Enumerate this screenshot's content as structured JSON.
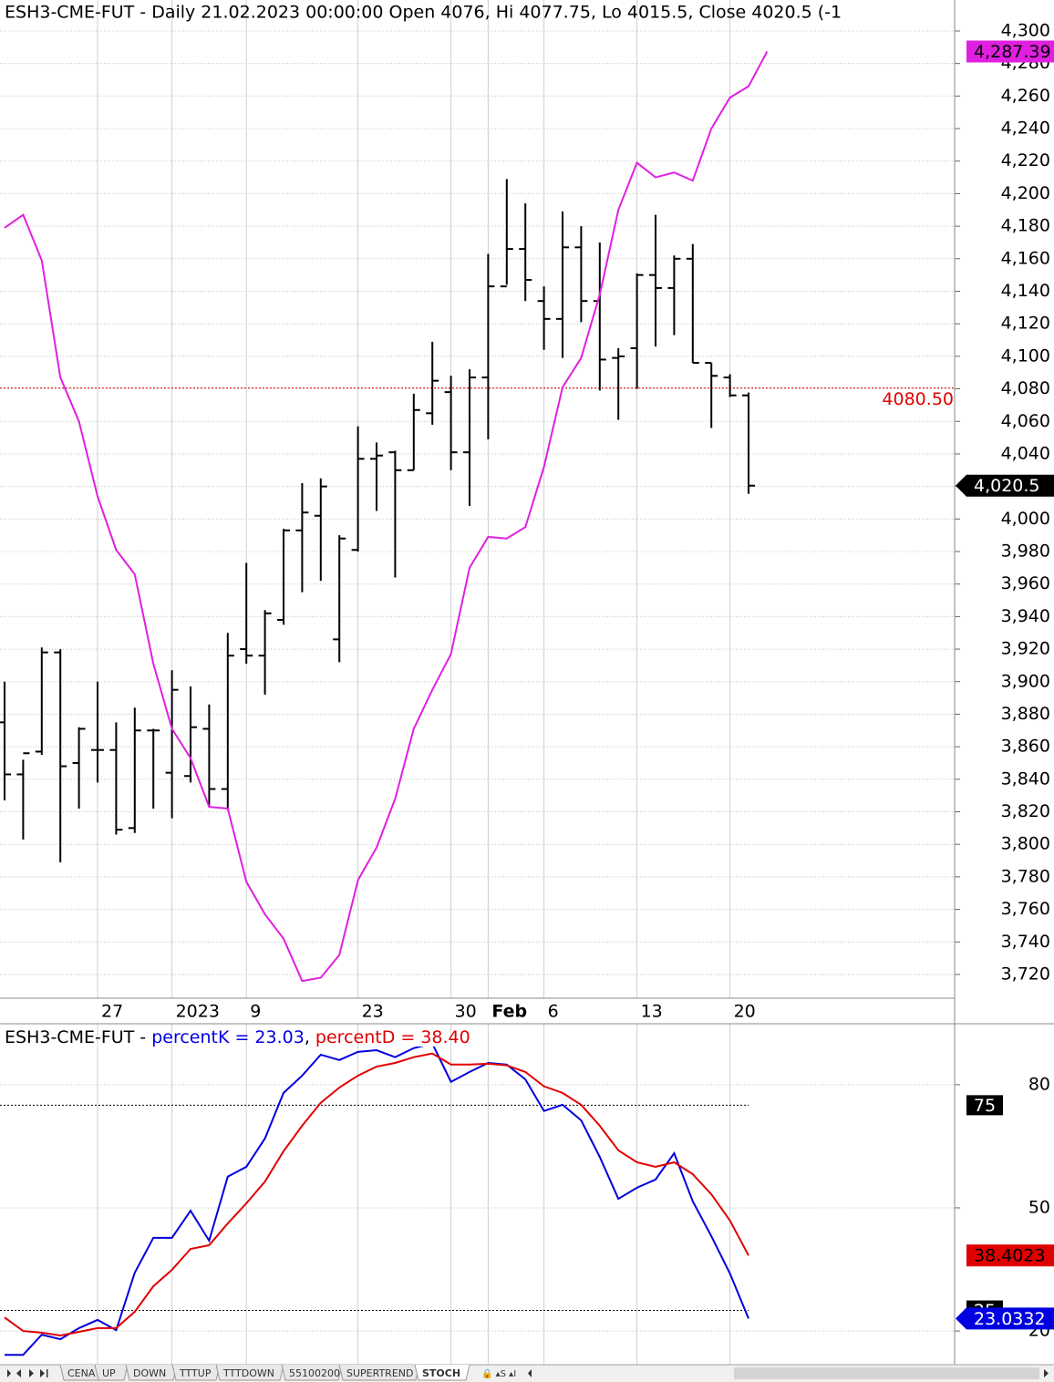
{
  "chart_data": [
    {
      "type": "ohlc",
      "title": "ESH3-CME-FUT - Daily 21.02.2023 00:00:00 Open 4076, Hi 4077.75, Lo 4015.5, Close 4020.5 (-1",
      "categories": [
        null,
        null,
        null,
        null,
        null,
        "27",
        null,
        null,
        null,
        "2023",
        null,
        null,
        null,
        "9",
        null,
        null,
        null,
        null,
        null,
        "23",
        null,
        null,
        null,
        null,
        "30",
        null,
        "Feb",
        null,
        null,
        "6",
        null,
        null,
        null,
        null,
        "13",
        null,
        null,
        null,
        null,
        "20",
        null,
        null
      ],
      "ohlc": {
        "color": "#000000",
        "last_label": "4,020.5",
        "open": [
          3875,
          3843,
          3857,
          3918,
          3850,
          3858,
          3858,
          3810,
          3870,
          3844,
          3842,
          3871,
          3834,
          3920,
          3916,
          3938,
          3993,
          4002,
          3926,
          3981,
          4037,
          4041,
          4030,
          4065,
          4078,
          4041,
          4087,
          4143,
          4166,
          4134,
          4123,
          4167,
          4134,
          4099,
          4105,
          4150,
          4142,
          4160,
          4096,
          4087,
          4076,
          null
        ],
        "high": [
          3900,
          3852,
          3921,
          3920,
          3872,
          3900,
          3875,
          3884,
          3871,
          3907,
          3897,
          3886,
          3930,
          3973,
          3944,
          3994,
          4022,
          4025,
          3990,
          4057,
          4047,
          4042,
          4077,
          4109,
          4088,
          4092,
          4163,
          4209,
          4194,
          4143,
          4189,
          4180,
          4170,
          4105,
          4151,
          4187,
          4162,
          4169,
          4096,
          4089,
          4077.75,
          null
        ],
        "low": [
          3827,
          3803,
          3855,
          3789,
          3822,
          3838,
          3806,
          3807,
          3822,
          3816,
          3838,
          3823,
          3821,
          3911,
          3892,
          3935,
          3955,
          3962,
          3912,
          3980,
          4005,
          3964,
          4030,
          4058,
          4030,
          4008,
          4049,
          4144,
          4134,
          4104,
          4099,
          4121,
          4079,
          4061,
          4080,
          4106,
          4113,
          4096,
          4056,
          4075,
          4015.5,
          null
        ],
        "close": [
          3843,
          3856,
          3918,
          3848,
          3871,
          3858,
          3809,
          3870,
          3870,
          3895,
          3872,
          3834,
          3916,
          3916,
          3942,
          3993,
          4004,
          4020,
          3988,
          4037,
          4039,
          4030,
          4067,
          4085,
          4041,
          4087,
          4143,
          4166,
          4147,
          4123,
          4167,
          4134,
          4098,
          4100,
          4150,
          4142,
          4160,
          4096,
          4088,
          4076,
          4020.5,
          null
        ]
      },
      "series": [
        {
          "color": "#e020e0",
          "last_label": "4,287.39",
          "values": [
            4179,
            4187,
            4159,
            4087,
            4060,
            4014,
            3981,
            3966,
            3911,
            3871,
            3853,
            3823,
            3822,
            3777,
            3757,
            3742,
            3716,
            3718,
            3732,
            3778,
            3798,
            3828,
            3871,
            3895,
            3917,
            3970,
            3989,
            3988,
            3995,
            4032,
            4081,
            4099,
            4138,
            4190,
            4219,
            4210,
            4213,
            4208,
            4240,
            4259,
            4266,
            4287.39
          ]
        }
      ],
      "reference_line": {
        "value": 4080.5,
        "label": "4080.50",
        "color": "#e00000"
      },
      "ylim": [
        3705.4,
        4319.05
      ],
      "yticks": [
        {
          "value": 3720,
          "label": "3,720"
        },
        {
          "value": 3740,
          "label": "3,740"
        },
        {
          "value": 3760,
          "label": "3,760"
        },
        {
          "value": 3780,
          "label": "3,780"
        },
        {
          "value": 3800,
          "label": "3,800"
        },
        {
          "value": 3820,
          "label": "3,820"
        },
        {
          "value": 3840,
          "label": "3,840"
        },
        {
          "value": 3860,
          "label": "3,860"
        },
        {
          "value": 3880,
          "label": "3,880"
        },
        {
          "value": 3900,
          "label": "3,900"
        },
        {
          "value": 3920,
          "label": "3,920"
        },
        {
          "value": 3940,
          "label": "3,940"
        },
        {
          "value": 3960,
          "label": "3,960"
        },
        {
          "value": 3980,
          "label": "3,980"
        },
        {
          "value": 4000,
          "label": "4,000"
        },
        {
          "value": 4020,
          "label": "4,020"
        },
        {
          "value": 4040,
          "label": "4,040"
        },
        {
          "value": 4060,
          "label": "4,060"
        },
        {
          "value": 4080,
          "label": "4,080"
        },
        {
          "value": 4100,
          "label": "4,100"
        },
        {
          "value": 4120,
          "label": "4,120"
        },
        {
          "value": 4140,
          "label": "4,140"
        },
        {
          "value": 4160,
          "label": "4,160"
        },
        {
          "value": 4180,
          "label": "4,180"
        },
        {
          "value": 4200,
          "label": "4,200"
        },
        {
          "value": 4220,
          "label": "4,220"
        },
        {
          "value": 4240,
          "label": "4,240"
        },
        {
          "value": 4260,
          "label": "4,260"
        },
        {
          "value": 4280,
          "label": "4,280"
        },
        {
          "value": 4300,
          "label": "4,300"
        }
      ],
      "grid": true
    },
    {
      "type": "line",
      "title": "ESH3-CME-FUT - ",
      "legend_separator": ", ",
      "series": [
        {
          "name": "percentK = 23.03",
          "color": "#0000e0",
          "last_label": "23.0332",
          "values": [
            14.2,
            14.2,
            19.1,
            18,
            20.7,
            22.7,
            20.2,
            34.2,
            42.7,
            42.7,
            49.3,
            42,
            57.6,
            60,
            66.9,
            78,
            82.2,
            87.3,
            86,
            88,
            88.4,
            86.7,
            88.9,
            90,
            80.7,
            83.1,
            85.3,
            84.9,
            81.3,
            73.6,
            75.1,
            71.3,
            62.4,
            52.2,
            54.9,
            56.9,
            63.3,
            51.6,
            43.1,
            34,
            23.0332,
            null
          ]
        },
        {
          "name": "percentD = 38.40",
          "color": "#e00000",
          "last_label": "38.4023",
          "values": [
            23.3,
            20,
            19.6,
            18.9,
            19.8,
            20.7,
            20.7,
            24.7,
            30.9,
            34.9,
            40,
            40.9,
            46.2,
            51.1,
            56.4,
            63.8,
            70,
            75.6,
            79.3,
            82.2,
            84.4,
            85.3,
            86.7,
            87.6,
            84.9,
            84.9,
            85.1,
            84.7,
            83.1,
            79.6,
            78,
            75.1,
            70,
            64,
            61.1,
            60,
            61.1,
            58.2,
            53.3,
            46.9,
            38.4023,
            null
          ]
        }
      ],
      "levels": [
        75,
        25
      ],
      "ylim": [
        11.8,
        94.4
      ],
      "yticks": [
        20,
        50,
        80
      ],
      "grid": true
    }
  ],
  "tabs": [
    "CENA",
    "UP",
    "DOWN",
    "TTTUP",
    "TTTDOWN",
    "55100200",
    "SUPERTREND",
    "STOCH"
  ],
  "active_tab": 7
}
